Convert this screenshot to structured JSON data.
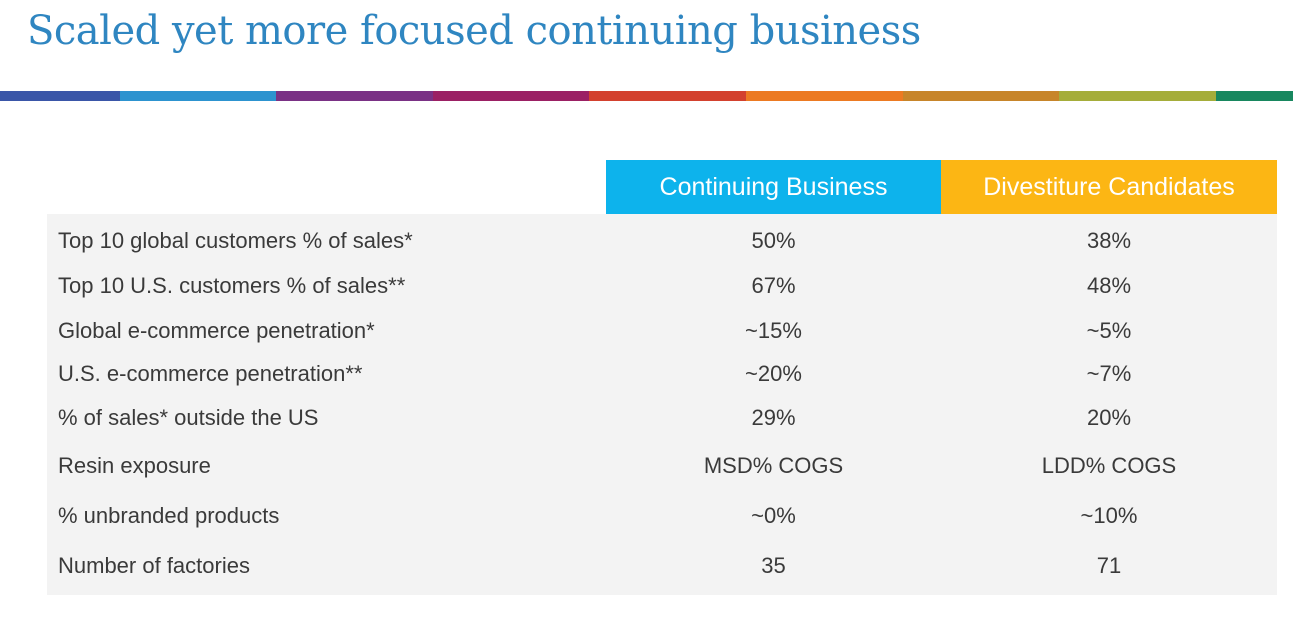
{
  "slide": {
    "title": "Scaled yet more focused continuing business",
    "stripe_colors": [
      "#3a56a8",
      "#2d93cf",
      "#7a3185",
      "#9b2064",
      "#d3412e",
      "#ec7a22",
      "#c7852a",
      "#a5ad3a",
      "#18875f"
    ]
  },
  "table": {
    "columns": [
      {
        "label": "Continuing Business",
        "color": "#0db3ec"
      },
      {
        "label": "Divestiture Candidates",
        "color": "#fcb614"
      }
    ],
    "rows": [
      {
        "label": "Top 10 global customers % of sales*",
        "continuing": "50%",
        "divestiture": "38%"
      },
      {
        "label": "Top 10 U.S. customers % of sales**",
        "continuing": "67%",
        "divestiture": "48%"
      },
      {
        "label": "Global e-commerce penetration*",
        "continuing": "~15%",
        "divestiture": "~5%"
      },
      {
        "label": "U.S. e-commerce penetration**",
        "continuing": "~20%",
        "divestiture": "~7%"
      },
      {
        "label": "% of sales* outside the US",
        "continuing": "29%",
        "divestiture": "20%"
      },
      {
        "label": "Resin exposure",
        "continuing": "MSD% COGS",
        "divestiture": "LDD% COGS"
      },
      {
        "label": "% unbranded products",
        "continuing": "~0%",
        "divestiture": "~10%"
      },
      {
        "label": "Number of factories",
        "continuing": "35",
        "divestiture": "71"
      }
    ]
  }
}
